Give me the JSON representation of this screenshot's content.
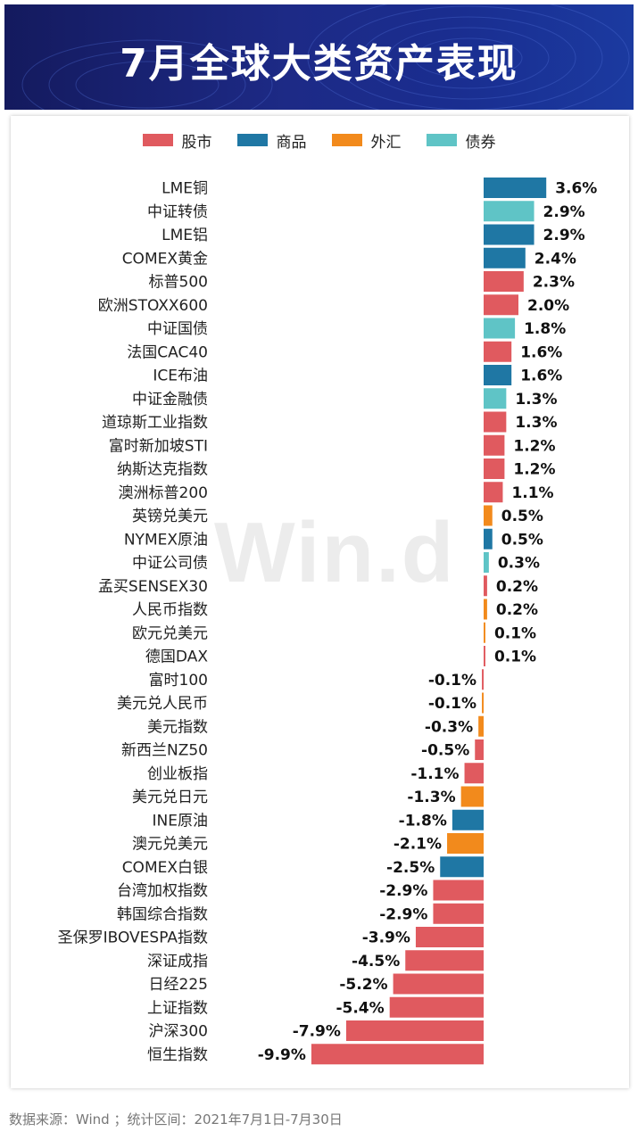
{
  "banner": {
    "title": "7月全球大类资产表现"
  },
  "colors": {
    "股市": "#e05a5f",
    "商品": "#1f77a4",
    "外汇": "#f28a1c",
    "债券": "#5fc4c6"
  },
  "legend": [
    {
      "label": "股市",
      "color": "#e05a5f"
    },
    {
      "label": "商品",
      "color": "#1f77a4"
    },
    {
      "label": "外汇",
      "color": "#f28a1c"
    },
    {
      "label": "债券",
      "color": "#5fc4c6"
    }
  ],
  "watermark": "Win.d",
  "footer": "数据来源：Wind  ；统计区间：2021年7月1日-7月30日",
  "chart_data": {
    "type": "bar",
    "orientation": "horizontal",
    "title": "",
    "xlabel": "",
    "ylabel": "",
    "unit": "%",
    "categories": [
      "LME铜",
      "中证转债",
      "LME铝",
      "COMEX黄金",
      "标普500",
      "欧洲STOXX600",
      "中证国债",
      "法国CAC40",
      "ICE布油",
      "中证金融债",
      "道琼斯工业指数",
      "富时新加坡STI",
      "纳斯达克指数",
      "澳洲标普200",
      "英镑兑美元",
      "NYMEX原油",
      "中证公司债",
      "孟买SENSEX30",
      "人民币指数",
      "欧元兑美元",
      "德国DAX",
      "富时100",
      "美元兑人民币",
      "美元指数",
      "新西兰NZ50",
      "创业板指",
      "美元兑日元",
      "INE原油",
      "澳元兑美元",
      "COMEX白银",
      "台湾加权指数",
      "韩国综合指数",
      "圣保罗IBOVESPA指数",
      "深证成指",
      "日经225",
      "上证指数",
      "沪深300",
      "恒生指数"
    ],
    "values": [
      3.6,
      2.9,
      2.9,
      2.4,
      2.3,
      2.0,
      1.8,
      1.6,
      1.6,
      1.3,
      1.3,
      1.2,
      1.2,
      1.1,
      0.5,
      0.5,
      0.3,
      0.2,
      0.2,
      0.1,
      0.1,
      -0.1,
      -0.1,
      -0.3,
      -0.5,
      -1.1,
      -1.3,
      -1.8,
      -2.1,
      -2.5,
      -2.9,
      -2.9,
      -3.9,
      -4.5,
      -5.2,
      -5.4,
      -7.9,
      -9.9
    ],
    "labels": [
      "3.6%",
      "2.9%",
      "2.9%",
      "2.4%",
      "2.3%",
      "2.0%",
      "1.8%",
      "1.6%",
      "1.6%",
      "1.3%",
      "1.3%",
      "1.2%",
      "1.2%",
      "1.1%",
      "0.5%",
      "0.5%",
      "0.3%",
      "0.2%",
      "0.2%",
      "0.1%",
      "0.1%",
      "-0.1%",
      "-0.1%",
      "-0.3%",
      "-0.5%",
      "-1.1%",
      "-1.3%",
      "-1.8%",
      "-2.1%",
      "-2.5%",
      "-2.9%",
      "-2.9%",
      "-3.9%",
      "-4.5%",
      "-5.2%",
      "-5.4%",
      "-7.9%",
      "-9.9%"
    ],
    "groups": [
      "商品",
      "债券",
      "商品",
      "商品",
      "股市",
      "股市",
      "债券",
      "股市",
      "商品",
      "债券",
      "股市",
      "股市",
      "股市",
      "股市",
      "外汇",
      "商品",
      "债券",
      "股市",
      "外汇",
      "外汇",
      "股市",
      "股市",
      "外汇",
      "外汇",
      "股市",
      "股市",
      "外汇",
      "商品",
      "外汇",
      "商品",
      "股市",
      "股市",
      "股市",
      "股市",
      "股市",
      "股市",
      "股市",
      "股市"
    ],
    "legend": [
      "股市",
      "商品",
      "外汇",
      "债券"
    ],
    "legend_position": "top",
    "grid": false
  }
}
